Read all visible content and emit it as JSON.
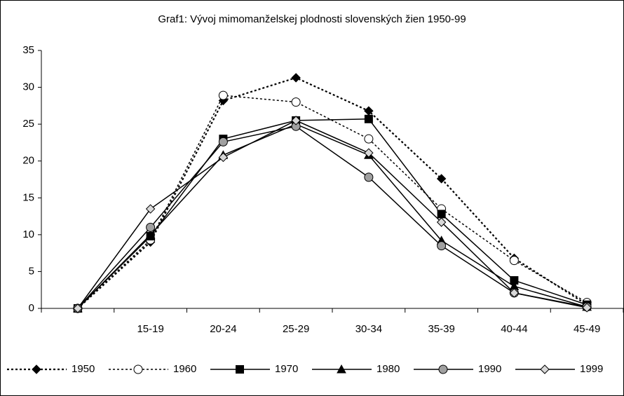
{
  "chart_data": {
    "type": "line",
    "title": "Graf1: Vývoj mimomanželskej plodnosti slovenských žien 1950-99",
    "categories": [
      null,
      "15-19",
      "20-24",
      "25-29",
      "30-34",
      "35-39",
      "40-44",
      "45-49"
    ],
    "series": [
      {
        "name": "1950",
        "color": "#000000",
        "marker": "diamond",
        "marker_fill": "#000000",
        "dashed": true,
        "values": [
          0,
          9,
          28.2,
          31.3,
          26.8,
          17.6,
          6.8,
          0.5
        ]
      },
      {
        "name": "1960",
        "color": "#000000",
        "marker": "circle",
        "marker_fill": "#ffffff",
        "dashed": true,
        "values": [
          0,
          9.3,
          28.9,
          28,
          23,
          13.5,
          6.5,
          0.8
        ]
      },
      {
        "name": "1970",
        "color": "#000000",
        "marker": "square",
        "marker_fill": "#000000",
        "dashed": false,
        "values": [
          0,
          9.8,
          23,
          25.5,
          25.7,
          12.8,
          3.8,
          0.5
        ]
      },
      {
        "name": "1980",
        "color": "#000000",
        "marker": "triangle",
        "marker_fill": "#000000",
        "dashed": false,
        "values": [
          0,
          10,
          20.8,
          25,
          20.8,
          9.2,
          3,
          0.2
        ]
      },
      {
        "name": "1990",
        "color": "#000000",
        "marker": "circle",
        "marker_fill": "#a0a0a0",
        "dashed": false,
        "values": [
          0,
          11,
          22.6,
          24.7,
          17.8,
          8.5,
          2.1,
          0.2
        ]
      },
      {
        "name": "1999",
        "color": "#000000",
        "marker": "diamond",
        "marker_fill": "#d8d8d8",
        "dashed": false,
        "values": [
          0,
          13.5,
          20.5,
          25.5,
          21.1,
          11.7,
          2.1,
          0.1
        ]
      }
    ],
    "ylim": [
      0,
      35
    ],
    "yticks": [
      0,
      5,
      10,
      15,
      20,
      25,
      30,
      35
    ],
    "grid": false
  }
}
